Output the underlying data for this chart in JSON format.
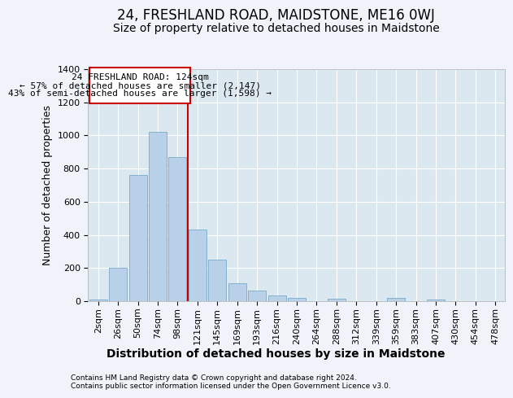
{
  "title": "24, FRESHLAND ROAD, MAIDSTONE, ME16 0WJ",
  "subtitle": "Size of property relative to detached houses in Maidstone",
  "xlabel": "Distribution of detached houses by size in Maidstone",
  "ylabel": "Number of detached properties",
  "footer1": "Contains HM Land Registry data © Crown copyright and database right 2024.",
  "footer2": "Contains public sector information licensed under the Open Government Licence v3.0.",
  "annotation_line1": "24 FRESHLAND ROAD: 124sqm",
  "annotation_line2": "← 57% of detached houses are smaller (2,147)",
  "annotation_line3": "43% of semi-detached houses are larger (1,598) →",
  "bar_labels": [
    "2sqm",
    "26sqm",
    "50sqm",
    "74sqm",
    "98sqm",
    "121sqm",
    "145sqm",
    "169sqm",
    "193sqm",
    "216sqm",
    "240sqm",
    "264sqm",
    "288sqm",
    "312sqm",
    "339sqm",
    "359sqm",
    "383sqm",
    "407sqm",
    "430sqm",
    "454sqm",
    "478sqm"
  ],
  "bar_values": [
    10,
    200,
    760,
    1020,
    870,
    430,
    250,
    110,
    65,
    35,
    20,
    0,
    15,
    0,
    0,
    20,
    0,
    10,
    0,
    0,
    0
  ],
  "bar_color": "#b8d0e8",
  "bar_edge_color": "#7aaac8",
  "vline_color": "#cc0000",
  "vline_x": 4.5,
  "ylim": [
    0,
    1400
  ],
  "yticks": [
    0,
    200,
    400,
    600,
    800,
    1000,
    1200,
    1400
  ],
  "fig_bg_color": "#f0f4fa",
  "plot_bg": "#dce8f0",
  "annotation_box_color": "#ffffff",
  "annotation_box_edge": "#cc0000",
  "title_fontsize": 12,
  "subtitle_fontsize": 10,
  "tick_fontsize": 8,
  "ylabel_fontsize": 9,
  "xlabel_fontsize": 10
}
